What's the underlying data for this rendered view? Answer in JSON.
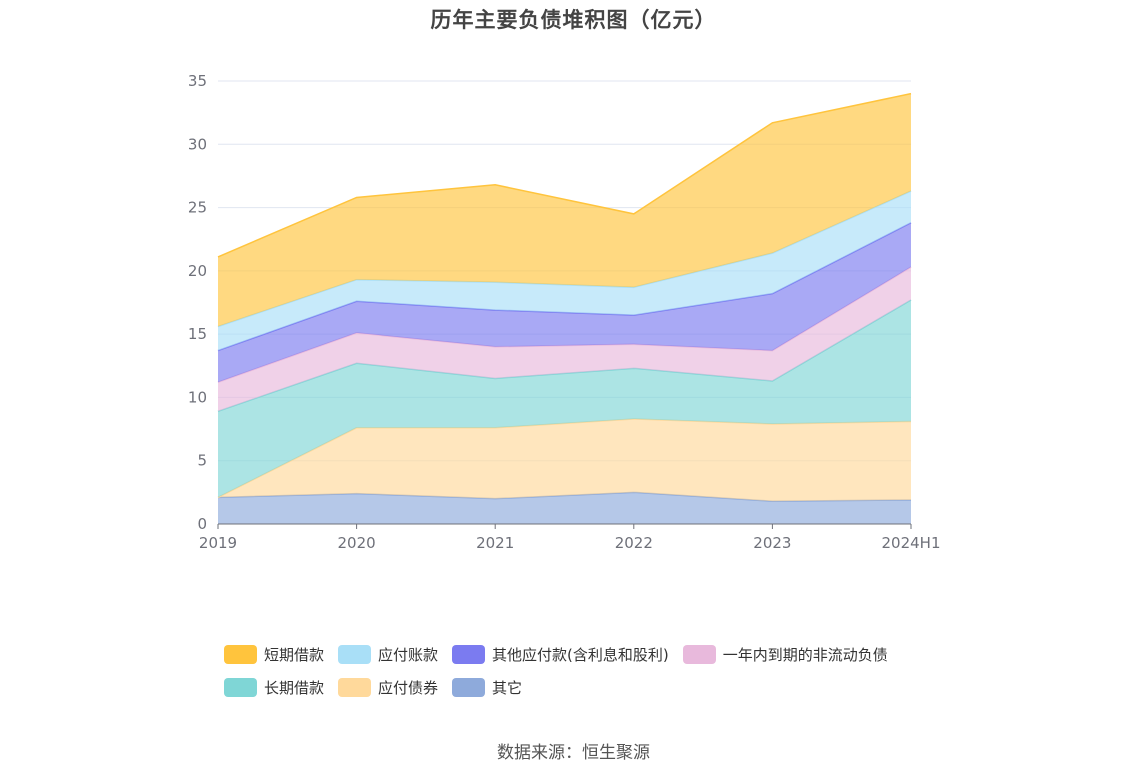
{
  "title": "历年主要负债堆积图（亿元）",
  "source": "数据来源：恒生聚源",
  "chart_data": {
    "type": "area",
    "stacked": true,
    "title": "历年主要负债堆积图（亿元）",
    "x": [
      "2019",
      "2020",
      "2021",
      "2022",
      "2023",
      "2024H1"
    ],
    "ylim": [
      0,
      35
    ],
    "yticks": [
      0,
      5,
      10,
      15,
      20,
      25,
      30,
      35
    ],
    "grid": true,
    "legend_position": "bottom",
    "series": [
      {
        "name": "其它",
        "color": "#8eaadb",
        "values": [
          2.1,
          2.4,
          2.0,
          2.5,
          1.8,
          1.9
        ]
      },
      {
        "name": "应付债券",
        "color": "#ffd99b",
        "values": [
          0.0,
          5.2,
          5.6,
          5.8,
          6.1,
          6.2
        ]
      },
      {
        "name": "长期借款",
        "color": "#7fd6d6",
        "values": [
          6.8,
          5.1,
          3.9,
          4.0,
          3.4,
          9.6
        ]
      },
      {
        "name": "一年内到期的非流动负债",
        "color": "#e8b9dc",
        "values": [
          2.3,
          2.4,
          2.5,
          1.9,
          2.4,
          2.6
        ]
      },
      {
        "name": "其他应付款(含利息和股利)",
        "color": "#7b7bf0",
        "values": [
          2.5,
          2.5,
          2.9,
          2.3,
          4.5,
          3.5
        ]
      },
      {
        "name": "应付账款",
        "color": "#a9dff7",
        "values": [
          1.9,
          1.7,
          2.2,
          2.2,
          3.2,
          2.5
        ]
      },
      {
        "name": "短期借款",
        "color": "#ffc43d",
        "values": [
          5.5,
          6.5,
          7.7,
          5.8,
          10.3,
          7.7
        ]
      }
    ],
    "legend_rows": [
      [
        "短期借款",
        "应付账款",
        "其他应付款(含利息和股利)",
        "一年内到期的非流动负债"
      ],
      [
        "长期借款",
        "应付债券",
        "其它"
      ]
    ]
  }
}
